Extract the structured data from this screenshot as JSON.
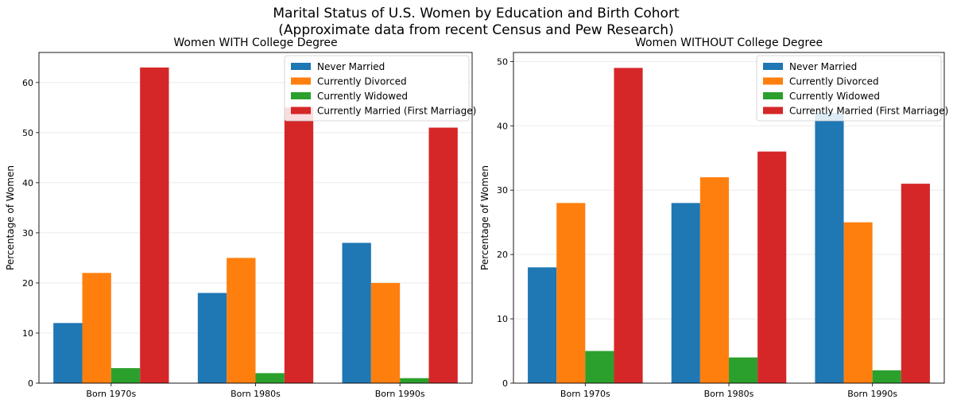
{
  "figure": {
    "title": "Marital Status of U.S. Women by Education and Birth Cohort",
    "subtitle": "(Approximate data from recent Census and Pew Research)"
  },
  "chart_data": [
    {
      "type": "bar",
      "title": "Women WITH College Degree",
      "xlabel": "",
      "ylabel": "Percentage of Women",
      "categories": [
        "Born 1970s",
        "Born 1980s",
        "Born 1990s"
      ],
      "ylim": [
        0,
        66
      ],
      "yticks": [
        0,
        10,
        20,
        30,
        40,
        50,
        60
      ],
      "grid": true,
      "legend": "top-right",
      "series": [
        {
          "name": "Never Married",
          "color": "#1f77b4",
          "values": [
            12,
            18,
            28
          ]
        },
        {
          "name": "Currently Divorced",
          "color": "#ff7f0e",
          "values": [
            22,
            25,
            20
          ]
        },
        {
          "name": "Currently Widowed",
          "color": "#2ca02c",
          "values": [
            3,
            2,
            1
          ]
        },
        {
          "name": "Currently Married (First Marriage)",
          "color": "#d62728",
          "values": [
            63,
            55,
            51
          ]
        }
      ]
    },
    {
      "type": "bar",
      "title": "Women WITHOUT College Degree",
      "xlabel": "",
      "ylabel": "Percentage of Women",
      "categories": [
        "Born 1970s",
        "Born 1980s",
        "Born 1990s"
      ],
      "ylim": [
        0,
        51.4
      ],
      "yticks": [
        0,
        10,
        20,
        30,
        40,
        50
      ],
      "grid": true,
      "legend": "top-right",
      "series": [
        {
          "name": "Never Married",
          "color": "#1f77b4",
          "values": [
            18,
            28,
            42
          ]
        },
        {
          "name": "Currently Divorced",
          "color": "#ff7f0e",
          "values": [
            28,
            32,
            25
          ]
        },
        {
          "name": "Currently Widowed",
          "color": "#2ca02c",
          "values": [
            5,
            4,
            2
          ]
        },
        {
          "name": "Currently Married (First Marriage)",
          "color": "#d62728",
          "values": [
            49,
            36,
            31
          ]
        }
      ]
    }
  ]
}
